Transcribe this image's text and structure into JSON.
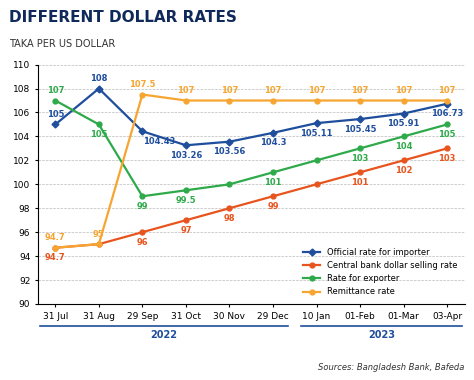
{
  "chart_data": {
    "type": "line",
    "title": "DIFFERENT DOLLAR RATES",
    "subtitle": "TAKA PER US DOLLAR",
    "source": "Sources: Bangladesh Bank, Bafeda",
    "categories": [
      "31 Jul",
      "31 Aug",
      "29 Sep",
      "31 Oct",
      "30 Nov",
      "29 Dec",
      "10 Jan",
      "01-Feb",
      "01-Mar",
      "03-Apr"
    ],
    "groups": [
      {
        "label": "2022",
        "count": 6
      },
      {
        "label": "2023",
        "count": 4
      }
    ],
    "series": [
      {
        "name": "Official rate for importer",
        "color": "#1f4e9c",
        "marker": "diamond",
        "values": [
          105,
          108,
          104.43,
          103.26,
          103.56,
          104.3,
          105.11,
          105.45,
          105.91,
          106.73
        ],
        "value_labels": [
          "105",
          "108",
          "104.43",
          "103.26",
          "103.56",
          "104.3",
          "105.11",
          "105.45",
          "105.91",
          "106.73"
        ]
      },
      {
        "name": "Central bank dollar selling rate",
        "color": "#e8541e",
        "marker": "circle",
        "values": [
          94.7,
          95,
          96,
          97,
          98,
          99,
          100,
          101,
          102,
          103
        ],
        "value_labels": [
          "94.7",
          null,
          "96",
          "97",
          "98",
          "99",
          null,
          "101",
          "102",
          "103"
        ]
      },
      {
        "name": "Rate for exporter",
        "color": "#2eaa4a",
        "marker": "circle",
        "values": [
          107,
          105,
          99,
          99.5,
          100,
          101,
          102,
          103,
          104,
          105
        ],
        "value_labels": [
          "107",
          "105",
          "99",
          "99.5",
          null,
          "101",
          null,
          "103",
          "104",
          "105"
        ]
      },
      {
        "name": "Remittance rate",
        "color": "#f7a531",
        "marker": "circle",
        "values": [
          94.7,
          95,
          107.5,
          107,
          107,
          107,
          107,
          107,
          107,
          107
        ],
        "value_labels": [
          "94.7",
          "95",
          "107.5",
          "107",
          "107",
          "107",
          "107",
          "107",
          "107",
          "107"
        ]
      }
    ],
    "ylim": [
      90,
      110
    ],
    "yticks": [
      90,
      92,
      94,
      96,
      98,
      100,
      102,
      104,
      106,
      108,
      110
    ],
    "grid": true,
    "legend": "lower right",
    "data_labels": true
  }
}
